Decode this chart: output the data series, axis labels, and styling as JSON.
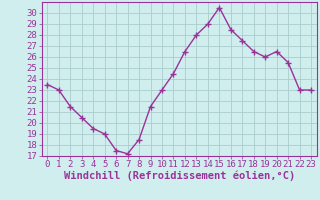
{
  "x": [
    0,
    1,
    2,
    3,
    4,
    5,
    6,
    7,
    8,
    9,
    10,
    11,
    12,
    13,
    14,
    15,
    16,
    17,
    18,
    19,
    20,
    21,
    22,
    23
  ],
  "y": [
    23.5,
    23.0,
    21.5,
    20.5,
    19.5,
    19.0,
    17.5,
    17.2,
    18.5,
    21.5,
    23.0,
    24.5,
    26.5,
    28.0,
    29.0,
    30.5,
    28.5,
    27.5,
    26.5,
    26.0,
    26.5,
    25.5,
    23.0,
    23.0
  ],
  "line_color": "#993399",
  "marker": "+",
  "marker_size": 4,
  "marker_lw": 1.0,
  "bg_color": "#d1eeee",
  "grid_color": "#aacccc",
  "xlabel": "Windchill (Refroidissement éolien,°C)",
  "ylabel": "",
  "ylim": [
    17,
    31
  ],
  "xlim": [
    -0.5,
    23.5
  ],
  "yticks": [
    17,
    18,
    19,
    20,
    21,
    22,
    23,
    24,
    25,
    26,
    27,
    28,
    29,
    30
  ],
  "xticks": [
    0,
    1,
    2,
    3,
    4,
    5,
    6,
    7,
    8,
    9,
    10,
    11,
    12,
    13,
    14,
    15,
    16,
    17,
    18,
    19,
    20,
    21,
    22,
    23
  ],
  "tick_color": "#993399",
  "label_color": "#993399",
  "spine_color": "#993399",
  "font_size": 6.5,
  "xlabel_fontsize": 7.5
}
